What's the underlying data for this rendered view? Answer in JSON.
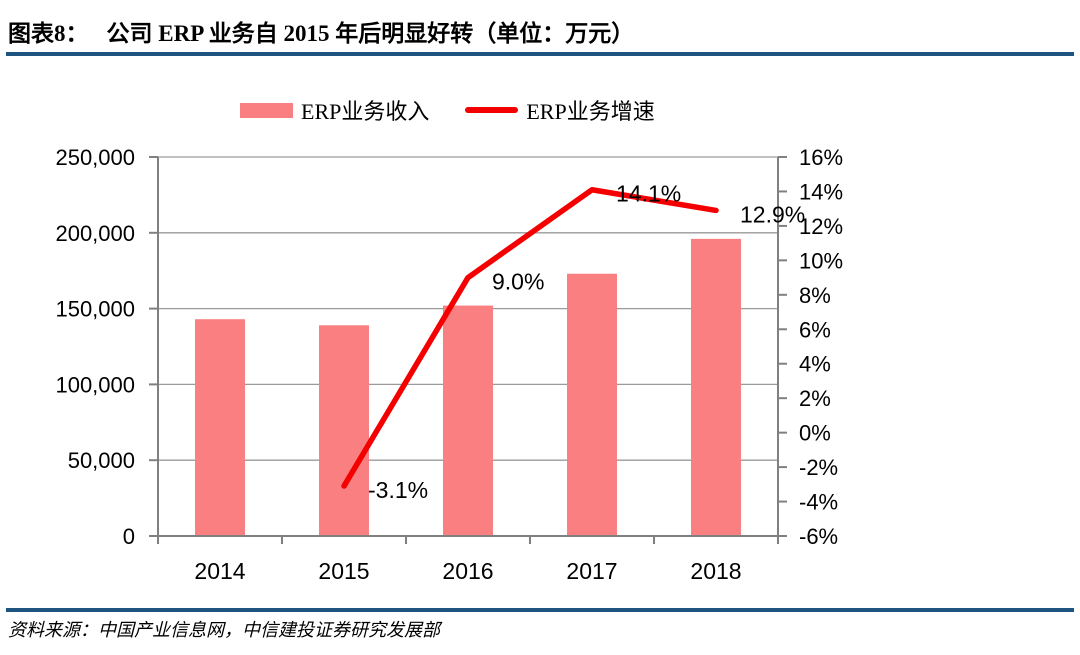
{
  "header": {
    "figure_label": "图表8：",
    "title": "公司 ERP 业务自 2015 年后明显好转（单位：万元）"
  },
  "footer": {
    "source": "资料来源：中国产业信息网，中信建投证券研究发展部"
  },
  "colors": {
    "accent_rule": "#1f5380",
    "bar_fill": "#fa7f81",
    "line_red": "#f40000",
    "axis_gray": "#808080",
    "grid_gray": "#9a9a9a",
    "text_black": "#000000"
  },
  "chart_data": {
    "type": "bar+line combo",
    "categories": [
      "2014",
      "2015",
      "2016",
      "2017",
      "2018"
    ],
    "series": [
      {
        "name": "ERP业务收入",
        "type": "bar",
        "axis": "left",
        "color": "#fa7f81",
        "values": [
          143000,
          139000,
          152000,
          173000,
          196000
        ]
      },
      {
        "name": "ERP业务增速",
        "type": "line",
        "axis": "right",
        "color": "#f40000",
        "values": [
          null,
          -3.1,
          9.0,
          14.1,
          12.9
        ],
        "point_labels": [
          null,
          "-3.1%",
          "9.0%",
          "14.1%",
          "12.9%"
        ]
      }
    ],
    "left_axis": {
      "min": 0,
      "max": 250000,
      "step": 50000,
      "tick_labels": [
        "0",
        "50,000",
        "100,000",
        "150,000",
        "200,000",
        "250,000"
      ]
    },
    "right_axis": {
      "min": -6,
      "max": 16,
      "step": 2,
      "tick_labels": [
        "-6%",
        "-4%",
        "-2%",
        "0%",
        "2%",
        "4%",
        "6%",
        "8%",
        "10%",
        "12%",
        "14%",
        "16%"
      ]
    },
    "grid": true,
    "legend_position": "top-center"
  }
}
